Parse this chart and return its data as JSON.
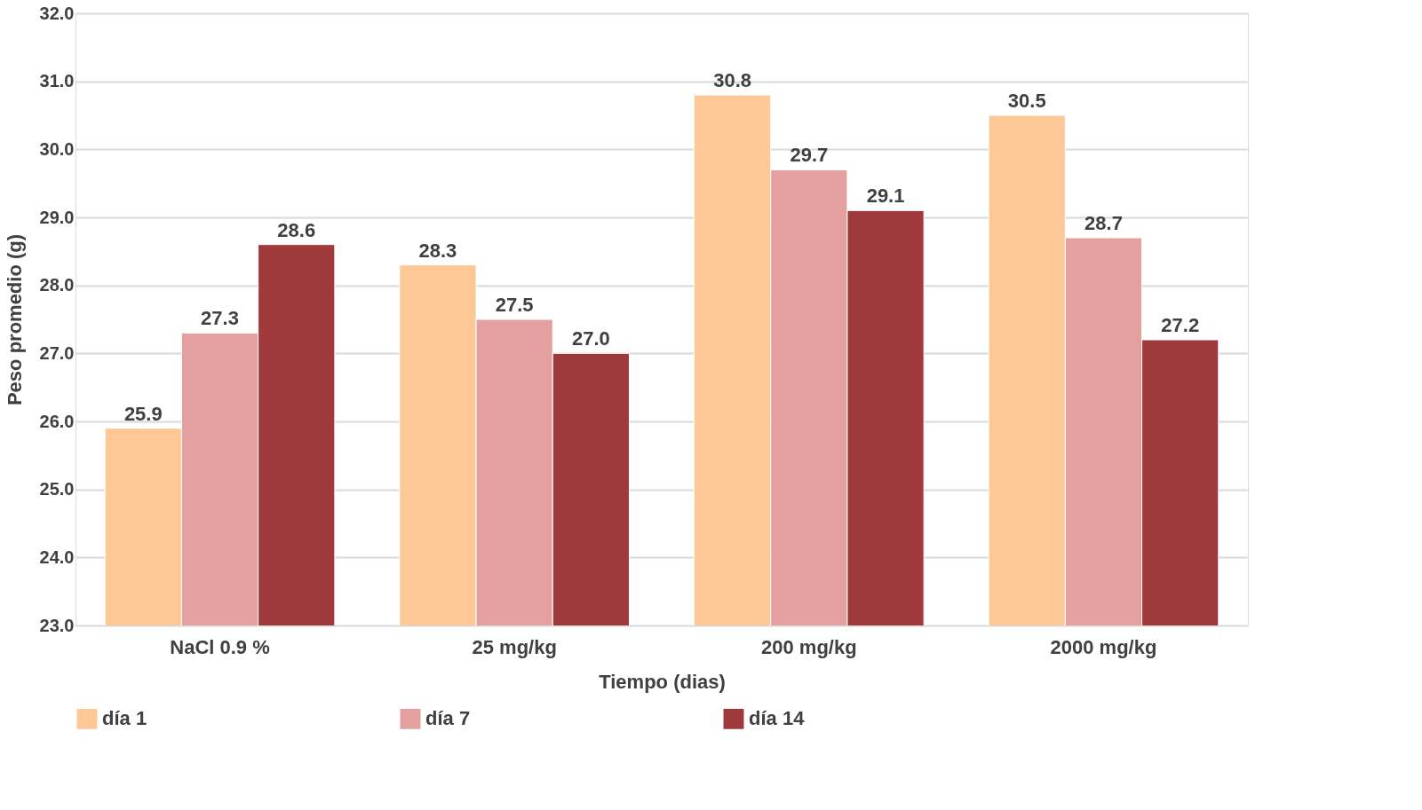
{
  "chart_data": {
    "type": "bar",
    "xlabel": "Tiempo (dias)",
    "ylabel": "Peso promedio (g)",
    "categories": [
      "NaCl 0.9 %",
      "25 mg/kg",
      "200 mg/kg",
      "2000 mg/kg"
    ],
    "series": [
      {
        "name": "día 1",
        "color": "#fdc896",
        "values": [
          25.9,
          28.3,
          30.8,
          30.5
        ],
        "value_labels": [
          "25.9",
          "28.3",
          "30.8",
          "30.5"
        ]
      },
      {
        "name": "día 7",
        "color": "#e49f9f",
        "values": [
          27.3,
          27.5,
          29.7,
          28.7
        ],
        "value_labels": [
          "27.3",
          "27.5",
          "29.7",
          "28.7"
        ]
      },
      {
        "name": "día 14",
        "color": "#a03a3a",
        "values": [
          28.6,
          27.0,
          29.1,
          27.2
        ],
        "value_labels": [
          "28.6",
          "27.0",
          "29.1",
          "27.2"
        ]
      }
    ],
    "ylim": [
      23,
      32
    ],
    "yticks": [
      {
        "value": 23,
        "label": "23.0"
      },
      {
        "value": 24,
        "label": "24.0"
      },
      {
        "value": 25,
        "label": "25.0"
      },
      {
        "value": 26,
        "label": "26.0"
      },
      {
        "value": 27,
        "label": "27.0"
      },
      {
        "value": 28,
        "label": "28.0"
      },
      {
        "value": 29,
        "label": "29.0"
      },
      {
        "value": 30,
        "label": "30.0"
      },
      {
        "value": 31,
        "label": "31.0"
      },
      {
        "value": 32,
        "label": "32.0"
      }
    ],
    "grid": "y",
    "legend": "bottom"
  }
}
